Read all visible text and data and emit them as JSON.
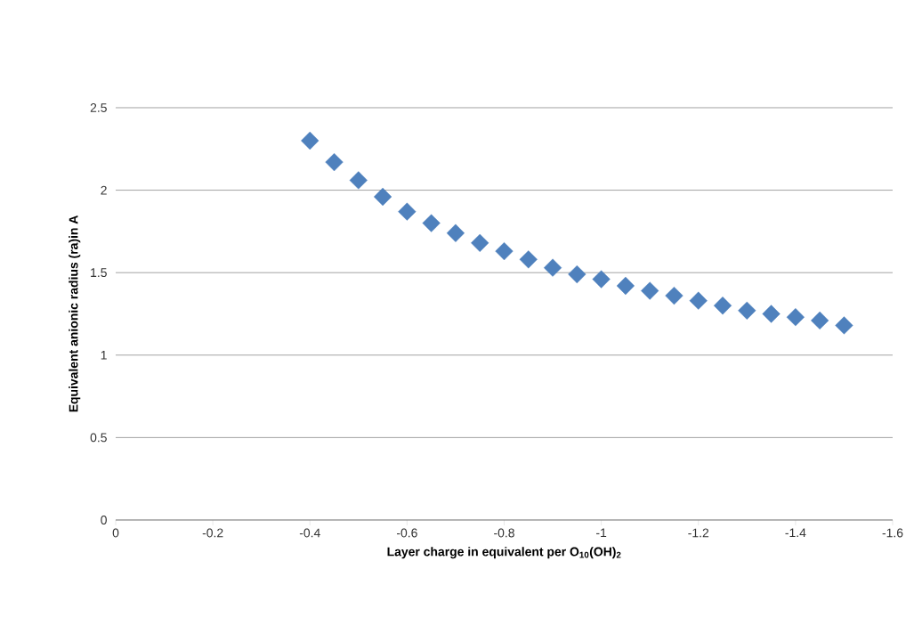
{
  "chart_data": {
    "type": "scatter",
    "xlabel": "Layer charge in equivalent per O$_{10}$(OH)$_{2}$",
    "ylabel": "Equivalent anionic radius (ra)in A",
    "x": [
      -0.4,
      -0.45,
      -0.5,
      -0.55,
      -0.6,
      -0.65,
      -0.7,
      -0.75,
      -0.8,
      -0.85,
      -0.9,
      -0.95,
      -1.0,
      -1.05,
      -1.1,
      -1.15,
      -1.2,
      -1.25,
      -1.3,
      -1.35,
      -1.4,
      -1.45,
      -1.5
    ],
    "series": [
      {
        "color": "#4f81bd",
        "values": [
          2.3,
          2.17,
          2.06,
          1.96,
          1.87,
          1.8,
          1.74,
          1.68,
          1.63,
          1.58,
          1.53,
          1.49,
          1.46,
          1.42,
          1.39,
          1.36,
          1.33,
          1.3,
          1.27,
          1.25,
          1.23,
          1.21,
          1.18
        ]
      }
    ],
    "xlim": [
      0,
      -1.6
    ],
    "xticks": [
      0,
      -0.2,
      -0.4,
      -0.6,
      -0.8,
      -1,
      -1.2,
      -1.4,
      -1.6
    ],
    "ylim": [
      0,
      2.5
    ],
    "yticks": [
      0,
      0.5,
      1,
      1.5,
      2,
      2.5
    ],
    "grid": "y",
    "marker": "diamond"
  }
}
